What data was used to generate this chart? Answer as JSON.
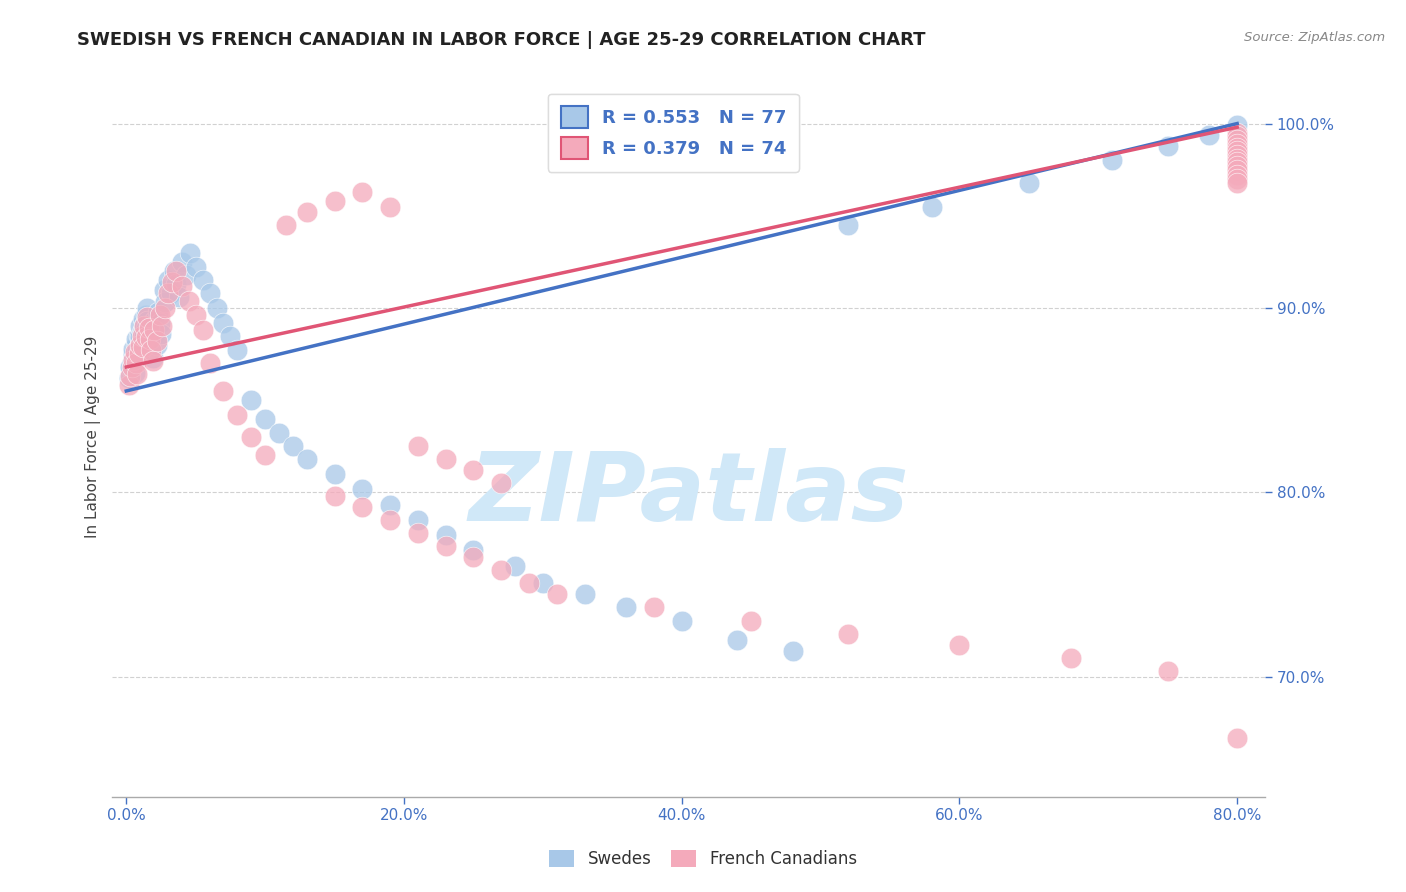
{
  "title": "SWEDISH VS FRENCH CANADIAN IN LABOR FORCE | AGE 25-29 CORRELATION CHART",
  "source": "Source: ZipAtlas.com",
  "ylabel": "In Labor Force | Age 25-29",
  "xlim": [
    -0.01,
    0.82
  ],
  "ylim": [
    0.635,
    1.025
  ],
  "ytick_values": [
    0.7,
    0.8,
    0.9,
    1.0
  ],
  "xtick_values": [
    0.0,
    0.2,
    0.4,
    0.6,
    0.8
  ],
  "swedes_R": 0.553,
  "swedes_N": 77,
  "french_R": 0.379,
  "french_N": 74,
  "blue_color": "#a8c8e8",
  "pink_color": "#f4aabb",
  "blue_line_color": "#4472c4",
  "pink_line_color": "#e05575",
  "watermark": "ZIPatlas",
  "watermark_color": "#d0e8f8",
  "background_color": "#ffffff",
  "swedes_x": [
    0.002,
    0.003,
    0.004,
    0.005,
    0.005,
    0.006,
    0.006,
    0.007,
    0.007,
    0.008,
    0.008,
    0.009,
    0.009,
    0.01,
    0.01,
    0.011,
    0.011,
    0.012,
    0.012,
    0.013,
    0.013,
    0.014,
    0.014,
    0.015,
    0.015,
    0.016,
    0.017,
    0.018,
    0.019,
    0.02,
    0.021,
    0.022,
    0.023,
    0.024,
    0.025,
    0.027,
    0.028,
    0.03,
    0.032,
    0.034,
    0.036,
    0.038,
    0.04,
    0.043,
    0.046,
    0.05,
    0.055,
    0.06,
    0.065,
    0.07,
    0.075,
    0.08,
    0.09,
    0.1,
    0.11,
    0.12,
    0.13,
    0.15,
    0.17,
    0.19,
    0.21,
    0.23,
    0.25,
    0.28,
    0.3,
    0.33,
    0.36,
    0.4,
    0.44,
    0.48,
    0.52,
    0.58,
    0.65,
    0.71,
    0.75,
    0.78,
    0.8
  ],
  "swedes_y": [
    0.862,
    0.868,
    0.87,
    0.875,
    0.878,
    0.872,
    0.865,
    0.88,
    0.883,
    0.877,
    0.871,
    0.885,
    0.879,
    0.89,
    0.884,
    0.887,
    0.882,
    0.894,
    0.888,
    0.891,
    0.885,
    0.896,
    0.889,
    0.9,
    0.893,
    0.888,
    0.883,
    0.878,
    0.873,
    0.893,
    0.886,
    0.88,
    0.898,
    0.892,
    0.886,
    0.91,
    0.903,
    0.915,
    0.908,
    0.92,
    0.913,
    0.906,
    0.925,
    0.918,
    0.93,
    0.922,
    0.915,
    0.908,
    0.9,
    0.892,
    0.885,
    0.877,
    0.85,
    0.84,
    0.832,
    0.825,
    0.818,
    0.81,
    0.802,
    0.793,
    0.785,
    0.777,
    0.769,
    0.76,
    0.751,
    0.745,
    0.738,
    0.73,
    0.72,
    0.714,
    0.945,
    0.955,
    0.968,
    0.98,
    0.988,
    0.994,
    0.999
  ],
  "french_x": [
    0.002,
    0.003,
    0.004,
    0.005,
    0.006,
    0.007,
    0.008,
    0.009,
    0.01,
    0.011,
    0.012,
    0.013,
    0.014,
    0.015,
    0.016,
    0.017,
    0.018,
    0.019,
    0.02,
    0.022,
    0.024,
    0.026,
    0.028,
    0.03,
    0.033,
    0.036,
    0.04,
    0.045,
    0.05,
    0.055,
    0.06,
    0.07,
    0.08,
    0.09,
    0.1,
    0.115,
    0.13,
    0.15,
    0.17,
    0.19,
    0.21,
    0.23,
    0.25,
    0.27,
    0.15,
    0.17,
    0.19,
    0.21,
    0.23,
    0.25,
    0.27,
    0.29,
    0.31,
    0.38,
    0.45,
    0.52,
    0.6,
    0.68,
    0.75,
    0.8,
    0.8,
    0.8,
    0.8,
    0.8,
    0.8,
    0.8,
    0.8,
    0.8,
    0.8,
    0.8,
    0.8,
    0.8,
    0.8,
    0.8
  ],
  "french_y": [
    0.858,
    0.863,
    0.868,
    0.872,
    0.876,
    0.87,
    0.864,
    0.875,
    0.88,
    0.885,
    0.879,
    0.89,
    0.884,
    0.895,
    0.889,
    0.883,
    0.877,
    0.871,
    0.888,
    0.882,
    0.896,
    0.89,
    0.9,
    0.908,
    0.914,
    0.92,
    0.912,
    0.904,
    0.896,
    0.888,
    0.87,
    0.855,
    0.842,
    0.83,
    0.82,
    0.945,
    0.952,
    0.958,
    0.963,
    0.955,
    0.825,
    0.818,
    0.812,
    0.805,
    0.798,
    0.792,
    0.785,
    0.778,
    0.771,
    0.765,
    0.758,
    0.751,
    0.745,
    0.738,
    0.73,
    0.723,
    0.717,
    0.71,
    0.703,
    0.667,
    0.995,
    0.993,
    0.991,
    0.989,
    0.987,
    0.985,
    0.983,
    0.981,
    0.979,
    0.977,
    0.975,
    0.972,
    0.97,
    0.968
  ]
}
